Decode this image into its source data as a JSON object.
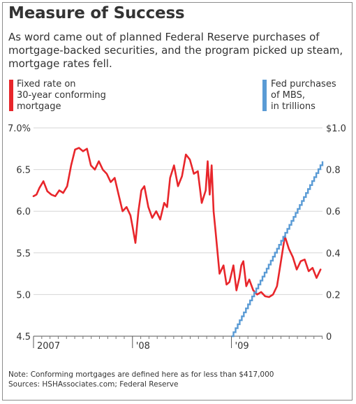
{
  "title": "Measure of Success",
  "subtitle": "As word came out of planned Federal Reserve purchases of mortgage-backed securities, and the program picked up steam, mortgage rates fell.",
  "legend": {
    "rate_line1": "Fixed rate on",
    "rate_line2": "30-year conforming",
    "rate_line3": "mortgage",
    "mbs_line1": "Fed purchases",
    "mbs_line2": "of MBS,",
    "mbs_line3": "in trillions"
  },
  "colors": {
    "rate": "#e8262b",
    "mbs": "#5a9bd5",
    "text": "#333333",
    "grid": "#d6d6d6"
  },
  "footnote": {
    "note": "Note: Conforming mortgages are defined here as for less than $417,000",
    "sources": "Sources: HSHAssociates.com; Federal Reserve"
  },
  "chart_data": {
    "type": "line",
    "x_ticks": [
      "2007",
      "'08",
      "'09"
    ],
    "x_range": [
      2007.0,
      2009.92
    ],
    "y_left": {
      "range": [
        4.5,
        7.0
      ],
      "ticks": [
        4.5,
        5.0,
        5.5,
        6.0,
        6.5,
        7.0
      ],
      "tick_labels": [
        "4.5",
        "5.0",
        "5.5",
        "6.0",
        "6.5",
        "7.0%"
      ]
    },
    "y_right": {
      "range": [
        0,
        1.0
      ],
      "ticks": [
        0,
        0.2,
        0.4,
        0.6,
        0.8,
        1.0
      ],
      "tick_labels": [
        "0",
        "0.2",
        "0.4",
        "0.6",
        "0.8",
        "$1.0"
      ]
    },
    "grid": true,
    "series": [
      {
        "axis": "left",
        "x": [
          2007.0,
          2007.03,
          2007.06,
          2007.1,
          2007.14,
          2007.18,
          2007.22,
          2007.26,
          2007.3,
          2007.34,
          2007.38,
          2007.42,
          2007.46,
          2007.5,
          2007.54,
          2007.58,
          2007.62,
          2007.66,
          2007.7,
          2007.74,
          2007.78,
          2007.82,
          2007.86,
          2007.9,
          2007.94,
          2007.98,
          2008.0,
          2008.03,
          2008.06,
          2008.09,
          2008.12,
          2008.16,
          2008.2,
          2008.24,
          2008.28,
          2008.32,
          2008.35,
          2008.38,
          2008.42,
          2008.46,
          2008.5,
          2008.54,
          2008.58,
          2008.62,
          2008.66,
          2008.7,
          2008.74,
          2008.76,
          2008.78,
          2008.8,
          2008.82,
          2008.84,
          2008.86,
          2008.88,
          2008.92,
          2008.95,
          2008.98,
          2009.02,
          2009.05,
          2009.08,
          2009.1,
          2009.12,
          2009.15,
          2009.18,
          2009.22,
          2009.26,
          2009.3,
          2009.34,
          2009.38,
          2009.42,
          2009.46,
          2009.5,
          2009.54,
          2009.58,
          2009.62,
          2009.66,
          2009.7,
          2009.74,
          2009.78,
          2009.82,
          2009.86,
          2009.9
        ],
        "values": [
          6.18,
          6.2,
          6.28,
          6.36,
          6.24,
          6.2,
          6.18,
          6.25,
          6.22,
          6.3,
          6.55,
          6.74,
          6.76,
          6.72,
          6.75,
          6.55,
          6.5,
          6.6,
          6.5,
          6.45,
          6.35,
          6.4,
          6.2,
          6.0,
          6.05,
          5.95,
          5.82,
          5.62,
          6.0,
          6.25,
          6.3,
          6.05,
          5.92,
          6.0,
          5.9,
          6.1,
          6.05,
          6.4,
          6.55,
          6.3,
          6.42,
          6.68,
          6.62,
          6.45,
          6.48,
          6.1,
          6.25,
          6.6,
          6.2,
          6.55,
          6.0,
          5.75,
          5.5,
          5.25,
          5.35,
          5.12,
          5.15,
          5.35,
          5.05,
          5.2,
          5.35,
          5.4,
          5.1,
          5.18,
          5.05,
          5.0,
          5.03,
          4.98,
          4.97,
          5.0,
          5.1,
          5.4,
          5.7,
          5.55,
          5.45,
          5.3,
          5.4,
          5.42,
          5.28,
          5.32,
          5.2,
          5.3
        ],
        "color_key": "rate"
      },
      {
        "axis": "right",
        "x": [
          2009.0,
          2009.92
        ],
        "values": [
          0.0,
          0.84
        ],
        "color_key": "mbs",
        "step": true
      }
    ]
  }
}
